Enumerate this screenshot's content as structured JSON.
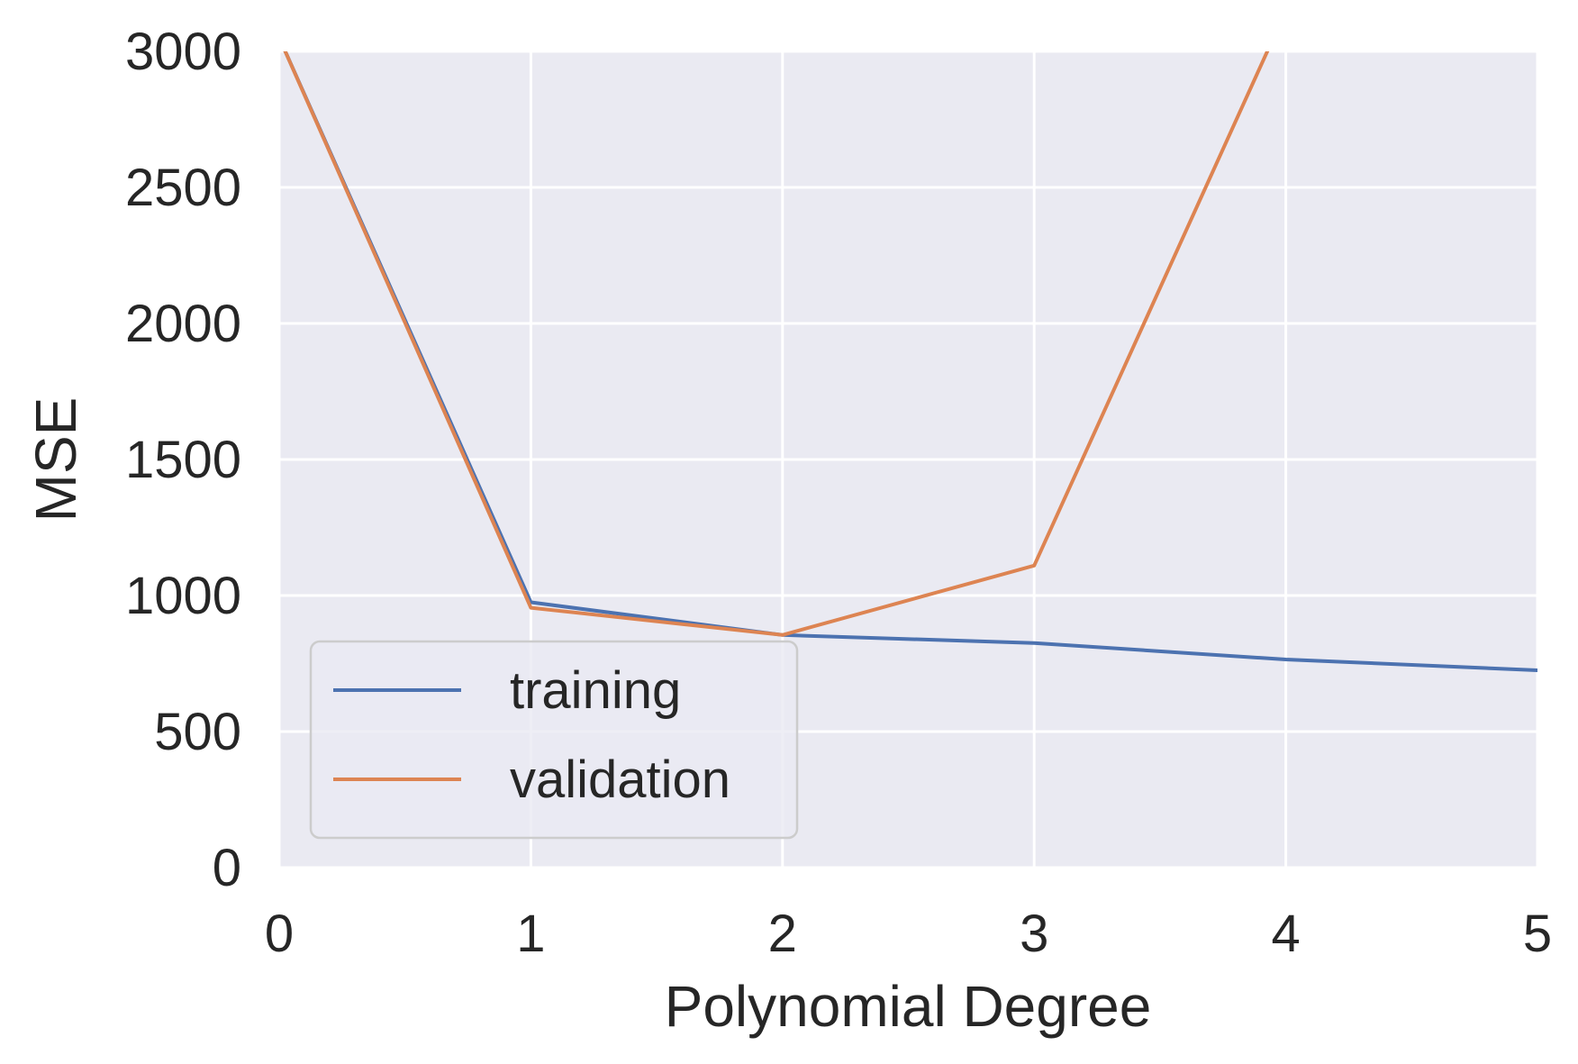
{
  "chart_data": {
    "type": "line",
    "title": "",
    "xlabel": "Polynomial Degree",
    "ylabel": "MSE",
    "xlim": [
      0,
      5
    ],
    "ylim": [
      0,
      3000
    ],
    "xticks": [
      0,
      1,
      2,
      3,
      4,
      5
    ],
    "yticks": [
      0,
      500,
      1000,
      1500,
      2000,
      2500,
      3000
    ],
    "grid": true,
    "legend_position": "lower-left",
    "background_color": "#eaeaf2",
    "grid_color": "#ffffff",
    "series": [
      {
        "name": "training",
        "color": "#4c72b0",
        "x": [
          0,
          1,
          2,
          3,
          4,
          5
        ],
        "y": [
          3050,
          975,
          855,
          825,
          765,
          725
        ]
      },
      {
        "name": "validation",
        "color": "#dd8452",
        "x": [
          0,
          1,
          2,
          3,
          4,
          5
        ],
        "y": [
          3050,
          955,
          855,
          1110,
          3150,
          3150
        ]
      }
    ]
  }
}
